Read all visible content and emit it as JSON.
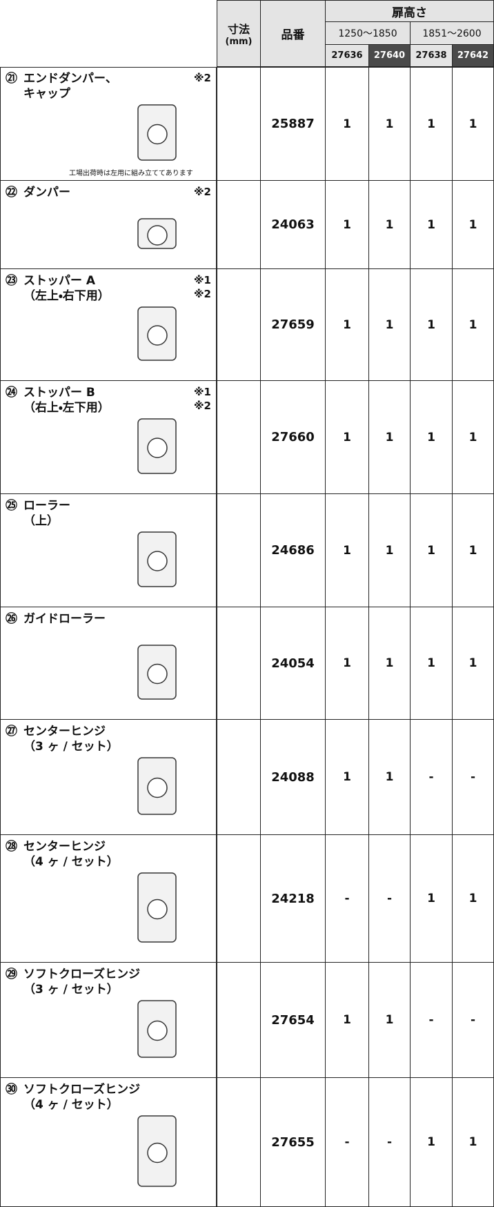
{
  "header": {
    "size": "寸法",
    "size_unit": "(mm)",
    "part_no": "品番",
    "door_height": "扉高さ",
    "ranges": [
      "1250～1850",
      "1851～2600"
    ],
    "codes": [
      "27636",
      "27640",
      "27638",
      "27642"
    ]
  },
  "rows": [
    {
      "num": "㉑",
      "name": [
        "エンドダンパー、",
        "キャップ"
      ],
      "notes": [
        "※2"
      ],
      "caption": "工場出荷時は左用に組み立ててあります",
      "part_no": "25887",
      "qty": [
        "1",
        "1",
        "1",
        "1"
      ]
    },
    {
      "num": "㉒",
      "name": [
        "ダンパー"
      ],
      "notes": [
        "※2"
      ],
      "part_no": "24063",
      "qty": [
        "1",
        "1",
        "1",
        "1"
      ]
    },
    {
      "num": "㉓",
      "name": [
        "ストッパー A",
        "（左上・右下用）"
      ],
      "notes": [
        "※1",
        "※2"
      ],
      "part_no": "27659",
      "qty": [
        "1",
        "1",
        "1",
        "1"
      ]
    },
    {
      "num": "㉔",
      "name": [
        "ストッパー B",
        "（右上・左下用）"
      ],
      "notes": [
        "※1",
        "※2"
      ],
      "part_no": "27660",
      "qty": [
        "1",
        "1",
        "1",
        "1"
      ]
    },
    {
      "num": "㉕",
      "name": [
        "ローラー",
        "（上）"
      ],
      "notes": [],
      "part_no": "24686",
      "qty": [
        "1",
        "1",
        "1",
        "1"
      ]
    },
    {
      "num": "㉖",
      "name": [
        "ガイドローラー"
      ],
      "notes": [],
      "part_no": "24054",
      "qty": [
        "1",
        "1",
        "1",
        "1"
      ]
    },
    {
      "num": "㉗",
      "name": [
        "センターヒンジ",
        "（3 ヶ / セット）"
      ],
      "notes": [],
      "part_no": "24088",
      "qty": [
        "1",
        "1",
        "-",
        "-"
      ]
    },
    {
      "num": "㉘",
      "name": [
        "センターヒンジ",
        "（4 ヶ / セット）"
      ],
      "notes": [],
      "part_no": "24218",
      "qty": [
        "-",
        "-",
        "1",
        "1"
      ]
    },
    {
      "num": "㉙",
      "name": [
        "ソフトクローズヒンジ",
        "（3 ヶ / セット）"
      ],
      "notes": [],
      "part_no": "27654",
      "qty": [
        "1",
        "1",
        "-",
        "-"
      ]
    },
    {
      "num": "㉚",
      "name": [
        "ソフトクローズヒンジ",
        "（4 ヶ / セット）"
      ],
      "notes": [],
      "part_no": "27655",
      "qty": [
        "-",
        "-",
        "1",
        "1"
      ]
    }
  ]
}
